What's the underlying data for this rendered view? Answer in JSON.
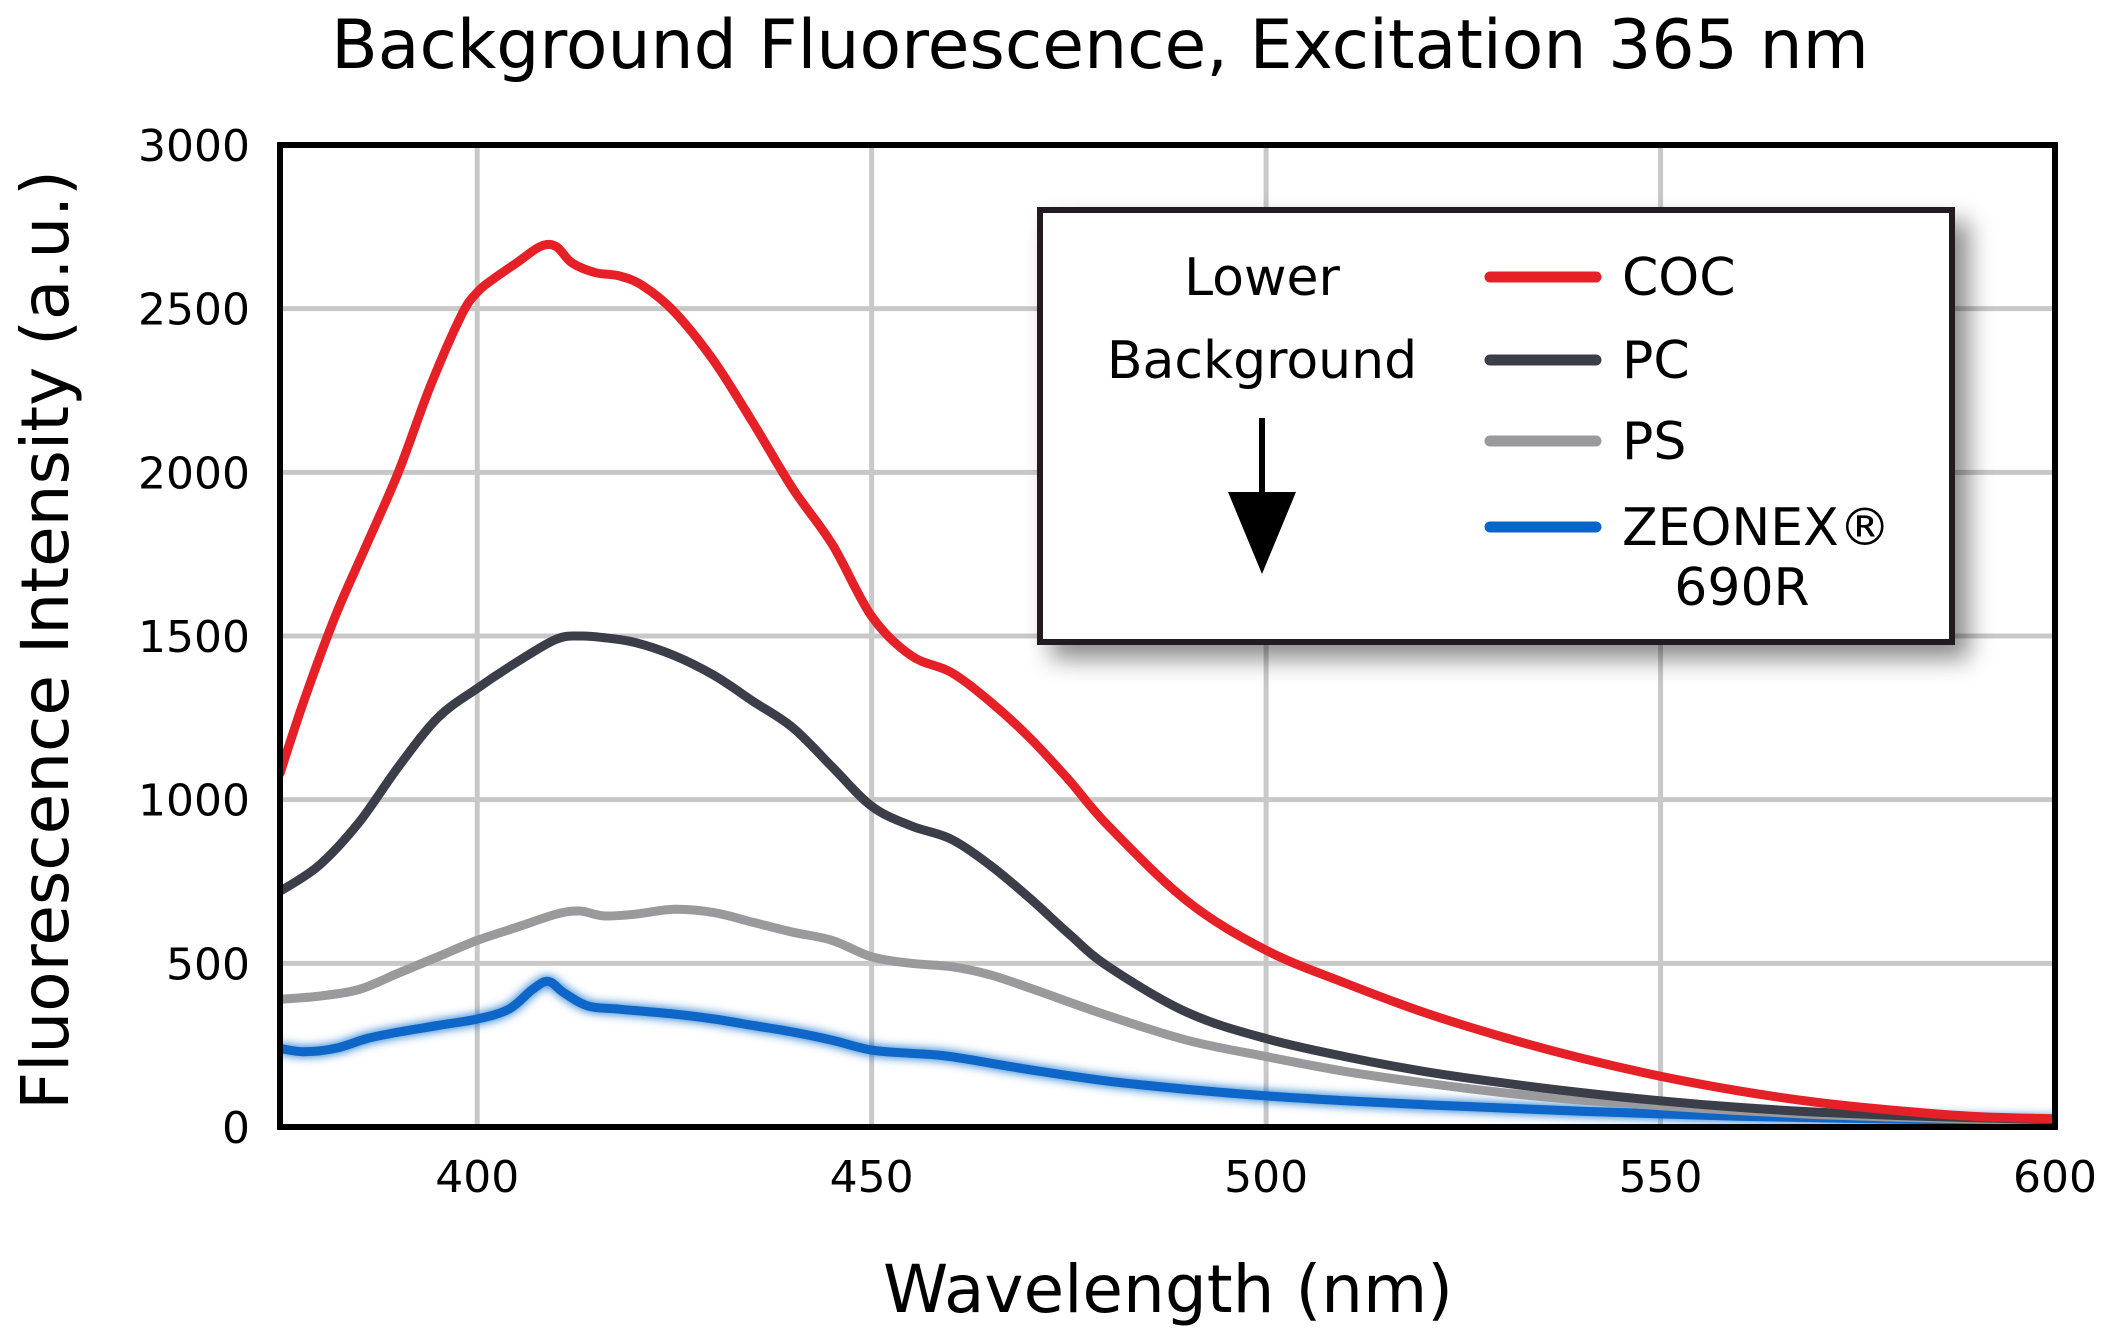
{
  "chart_data": {
    "type": "line",
    "title": "Background Fluorescence, Excitation 365 nm",
    "xlabel": "Wavelength (nm)",
    "ylabel": "Fluorescence Intensity (a.u.)",
    "xlim": [
      375,
      600
    ],
    "ylim": [
      0,
      3000
    ],
    "xticks": [
      400,
      450,
      500,
      550,
      600
    ],
    "yticks": [
      0,
      500,
      1000,
      1500,
      2000,
      2500,
      3000
    ],
    "grid": true,
    "legend_position": "top-right",
    "annotation": {
      "line1": "Lower",
      "line2": "Background"
    },
    "series": [
      {
        "name": "COC",
        "color": "#e52027",
        "x": [
          375,
          378,
          382,
          386,
          390,
          394,
          398,
          400,
          402,
          405,
          408,
          410,
          412,
          415,
          418,
          421,
          425,
          430,
          435,
          440,
          445,
          450,
          455,
          460,
          465,
          470,
          475,
          480,
          490,
          500,
          510,
          520,
          530,
          540,
          550,
          560,
          570,
          580,
          590,
          600
        ],
        "y": [
          1080,
          1300,
          1560,
          1780,
          2000,
          2260,
          2480,
          2550,
          2590,
          2640,
          2690,
          2690,
          2640,
          2610,
          2600,
          2570,
          2490,
          2340,
          2150,
          1950,
          1780,
          1560,
          1440,
          1390,
          1300,
          1190,
          1060,
          920,
          690,
          540,
          440,
          350,
          275,
          210,
          155,
          110,
          75,
          50,
          32,
          25
        ]
      },
      {
        "name": "PC",
        "color": "#3b3e48",
        "x": [
          375,
          380,
          385,
          390,
          395,
          400,
          405,
          410,
          413,
          416,
          420,
          425,
          430,
          435,
          440,
          445,
          450,
          455,
          460,
          465,
          470,
          475,
          480,
          490,
          500,
          510,
          520,
          530,
          540,
          550,
          560,
          570,
          580,
          590,
          600
        ],
        "y": [
          720,
          800,
          930,
          1100,
          1250,
          1340,
          1420,
          1490,
          1500,
          1495,
          1480,
          1440,
          1380,
          1300,
          1220,
          1100,
          980,
          920,
          880,
          800,
          700,
          590,
          490,
          350,
          270,
          215,
          170,
          135,
          105,
          80,
          60,
          45,
          35,
          28,
          22
        ]
      },
      {
        "name": "PS",
        "color": "#9a9a9c",
        "x": [
          375,
          380,
          385,
          390,
          395,
          400,
          405,
          410,
          413,
          416,
          420,
          425,
          430,
          435,
          440,
          445,
          450,
          455,
          460,
          465,
          470,
          480,
          490,
          500,
          510,
          520,
          530,
          540,
          550,
          560,
          570,
          580,
          590,
          600
        ],
        "y": [
          390,
          400,
          420,
          470,
          520,
          570,
          610,
          650,
          660,
          645,
          650,
          665,
          655,
          625,
          595,
          570,
          520,
          500,
          490,
          465,
          425,
          340,
          265,
          215,
          170,
          135,
          105,
          82,
          65,
          50,
          38,
          30,
          24,
          20
        ]
      },
      {
        "name": "ZEONEX® 690R",
        "name_line1": "ZEONEX®",
        "name_line2": "690R",
        "color": "#0866c8",
        "x": [
          375,
          378,
          382,
          386,
          390,
          395,
          400,
          404,
          407,
          409,
          411,
          414,
          418,
          425,
          430,
          435,
          440,
          445,
          450,
          455,
          460,
          470,
          480,
          490,
          500,
          510,
          520,
          530,
          540,
          550,
          560,
          570,
          580,
          590,
          600
        ],
        "y": [
          240,
          230,
          240,
          270,
          290,
          310,
          330,
          360,
          420,
          445,
          410,
          370,
          360,
          345,
          330,
          310,
          290,
          265,
          235,
          225,
          215,
          175,
          140,
          115,
          95,
          80,
          68,
          58,
          48,
          40,
          33,
          28,
          24,
          21,
          18
        ]
      }
    ]
  }
}
